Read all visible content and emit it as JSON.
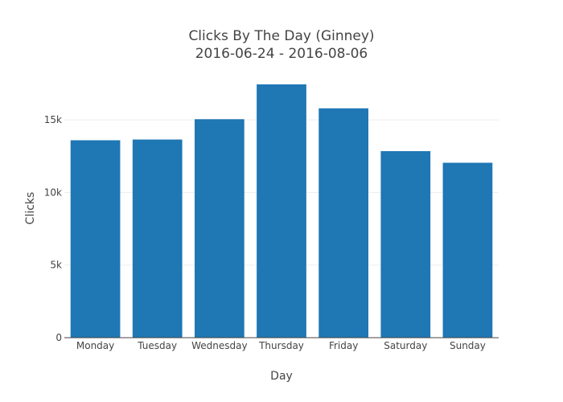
{
  "chart_data": {
    "type": "bar",
    "title": "Clicks By The Day (Ginney)",
    "subtitle": "2016-06-24 - 2016-08-06",
    "xlabel": "Day",
    "ylabel": "Clicks",
    "categories": [
      "Monday",
      "Tuesday",
      "Wednesday",
      "Thursday",
      "Friday",
      "Saturday",
      "Sunday"
    ],
    "values": [
      13600,
      13650,
      15050,
      17450,
      15800,
      12850,
      12050
    ],
    "ylim": [
      0,
      18000
    ],
    "yticks": [
      0,
      5000,
      10000,
      15000
    ],
    "ytick_labels": [
      "0",
      "5k",
      "10k",
      "15k"
    ],
    "grid": true,
    "legend": "none",
    "colors": {
      "bar": "#1f77b4",
      "grid": "#eeeeee",
      "axis": "#444444",
      "text": "#444444"
    }
  }
}
